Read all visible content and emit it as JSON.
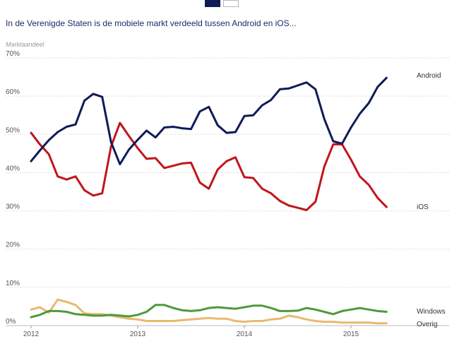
{
  "header": {
    "title": "In de Verenigde Staten is de mobiele markt verdeeld tussen Android en iOS..."
  },
  "chart_data": {
    "type": "line",
    "title": "In de Verenigde Staten is de mobiele markt verdeeld tussen Android en iOS...",
    "ylabel": "Marktaandeel",
    "xlabel": "",
    "ylim": [
      0,
      70
    ],
    "xlim": [
      2012.0,
      2015.583
    ],
    "yticks": [
      0,
      10,
      20,
      30,
      40,
      50,
      60,
      70
    ],
    "yticklabels": [
      "0%",
      "10%",
      "20%",
      "30%",
      "40%",
      "50%",
      "60%",
      "70%"
    ],
    "xticks": [
      2012,
      2013,
      2014,
      2015
    ],
    "xticklabels": [
      "2012",
      "2013",
      "2014",
      "2015"
    ],
    "grid": true,
    "x": [
      2012.0,
      2012.083,
      2012.167,
      2012.25,
      2012.333,
      2012.417,
      2012.5,
      2012.583,
      2012.667,
      2012.75,
      2012.833,
      2012.917,
      2013.0,
      2013.083,
      2013.167,
      2013.25,
      2013.333,
      2013.417,
      2013.5,
      2013.583,
      2013.667,
      2013.75,
      2013.833,
      2013.917,
      2014.0,
      2014.083,
      2014.167,
      2014.25,
      2014.333,
      2014.417,
      2014.5,
      2014.583,
      2014.667,
      2014.75,
      2014.833,
      2014.917,
      2015.0,
      2015.083,
      2015.167,
      2015.25,
      2015.333
    ],
    "series": [
      {
        "name": "Android",
        "color": "#0f1b57",
        "values": [
          43,
          45.8,
          48.5,
          50.6,
          52,
          52.6,
          58.8,
          60.6,
          59.8,
          48,
          42.2,
          46,
          48.6,
          51,
          49.2,
          51.8,
          52,
          51.6,
          51.4,
          56,
          57.2,
          52.4,
          50.4,
          50.6,
          54.8,
          55,
          57.6,
          59,
          61.8,
          62,
          62.8,
          63.6,
          61.8,
          54,
          48.2,
          47.6,
          51.8,
          55.4,
          58.2,
          62.4,
          64.8
        ]
      },
      {
        "name": "iOS",
        "color": "#c0161b",
        "values": [
          50.4,
          47.4,
          44.8,
          39,
          38.2,
          39,
          35.4,
          34,
          34.6,
          46.8,
          53,
          49.6,
          46.4,
          43.6,
          43.8,
          41.2,
          41.8,
          42.4,
          42.6,
          37.4,
          35.8,
          40.8,
          43,
          44,
          38.8,
          38.6,
          35.8,
          34.6,
          32.6,
          31.4,
          30.8,
          30.2,
          32.4,
          41.6,
          47.4,
          47.4,
          43.4,
          39,
          36.8,
          33.4,
          31
        ]
      },
      {
        "name": "Windows",
        "color": "#4e9a3b",
        "values": [
          2.2,
          2.8,
          3.8,
          3.8,
          3.6,
          3,
          2.8,
          2.6,
          2.6,
          2.8,
          2.6,
          2.4,
          2.8,
          3.6,
          5.4,
          5.4,
          4.6,
          4,
          3.8,
          4,
          4.6,
          4.8,
          4.6,
          4.4,
          4.8,
          5.2,
          5.2,
          4.6,
          3.8,
          3.8,
          3.9,
          4.6,
          4.2,
          3.6,
          3,
          3.8,
          4.2,
          4.6,
          4.2,
          3.8,
          3.6
        ]
      },
      {
        "name": "Overig",
        "color": "#e9b96e",
        "values": [
          4.2,
          4.8,
          3.4,
          6.8,
          6.2,
          5.4,
          3.2,
          3,
          3,
          2.6,
          2.2,
          1.8,
          1.6,
          1.2,
          1.2,
          1.2,
          1.2,
          1.4,
          1.6,
          1.8,
          2,
          1.8,
          1.8,
          1.2,
          1,
          1.2,
          1.2,
          1.6,
          1.8,
          2.6,
          2.2,
          1.6,
          1.2,
          1,
          1,
          0.8,
          0.8,
          0.8,
          0.8,
          0.6,
          0.6
        ]
      }
    ],
    "legend": "direct-labels-right"
  },
  "series_labels": {
    "android": "Android",
    "ios": "iOS",
    "windows": "Windows",
    "overig": "Overig"
  }
}
